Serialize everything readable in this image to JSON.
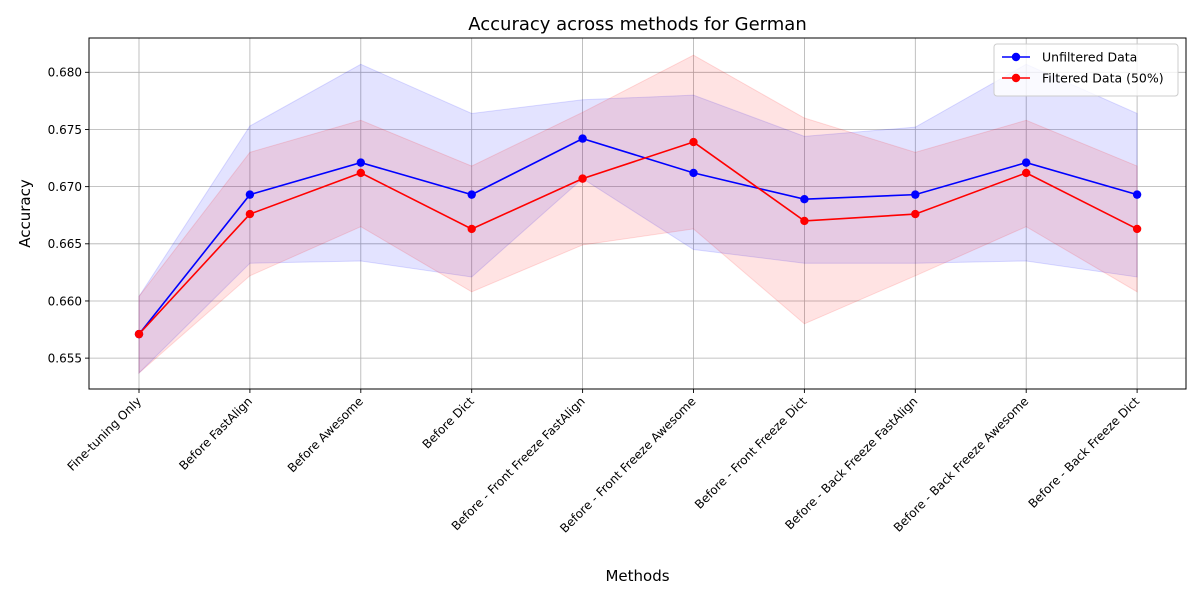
{
  "chart_data": {
    "type": "line",
    "title": "Accuracy across methods for German",
    "xlabel": "Methods",
    "ylabel": "Accuracy",
    "ylim": [
      0.6523,
      0.683
    ],
    "yticks": [
      "0.655",
      "0.660",
      "0.665",
      "0.670",
      "0.675",
      "0.680"
    ],
    "grid": true,
    "legend_position": "top-right",
    "categories": [
      "Fine-tuning Only",
      "Before FastAlign",
      "Before Awesome",
      "Before Dict",
      "Before - Front Freeze FastAlign",
      "Before - Front Freeze Awesome",
      "Before - Front Freeze Dict",
      "Before - Back Freeze FastAlign",
      "Before - Back Freeze Awesome",
      "Before - Back Freeze Dict"
    ],
    "series": [
      {
        "name": "Unfiltered Data",
        "color": "#0000ff",
        "values": [
          0.6571,
          0.6693,
          0.6721,
          0.6693,
          0.6742,
          0.6712,
          0.6689,
          0.6693,
          0.6721,
          0.6693
        ],
        "lower": [
          0.6537,
          0.6633,
          0.6635,
          0.6621,
          0.6707,
          0.6645,
          0.6633,
          0.6633,
          0.6635,
          0.6621
        ],
        "upper": [
          0.6604,
          0.6753,
          0.6807,
          0.6764,
          0.6776,
          0.678,
          0.6744,
          0.6752,
          0.6807,
          0.6764
        ]
      },
      {
        "name": "Filtered Data (50%)",
        "color": "#ff0000",
        "values": [
          0.6571,
          0.6676,
          0.6712,
          0.6663,
          0.6707,
          0.6739,
          0.667,
          0.6676,
          0.6712,
          0.6663
        ],
        "lower": [
          0.6537,
          0.6622,
          0.6665,
          0.6608,
          0.6649,
          0.6663,
          0.658,
          0.6622,
          0.6665,
          0.6608
        ],
        "upper": [
          0.6604,
          0.673,
          0.6758,
          0.6718,
          0.6765,
          0.6815,
          0.676,
          0.673,
          0.6758,
          0.6718
        ]
      }
    ]
  }
}
